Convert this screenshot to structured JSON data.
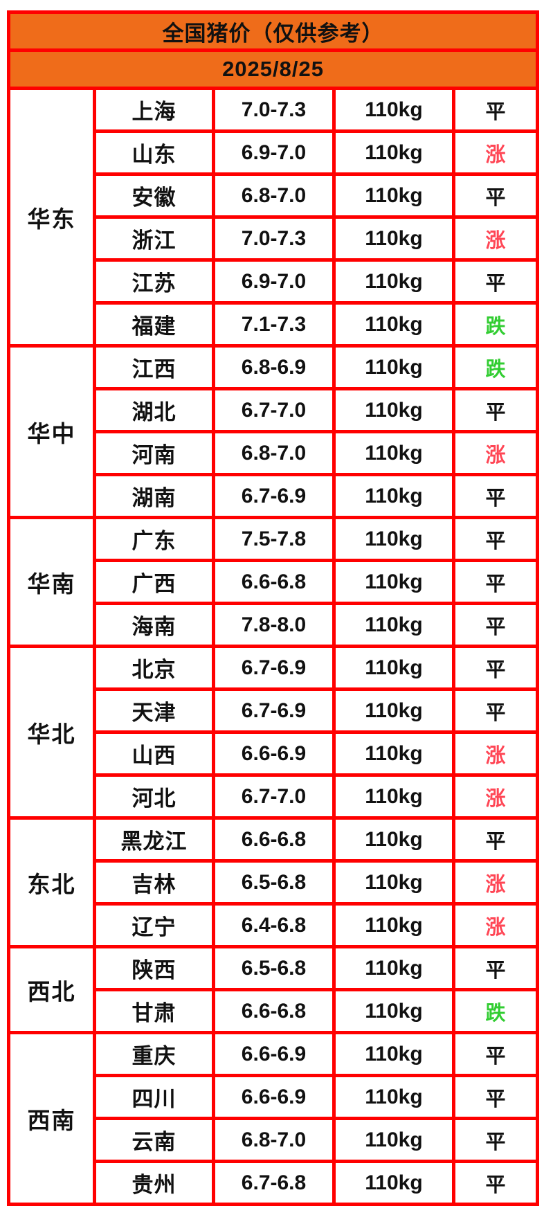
{
  "title": "全国猪价（仅供参考）",
  "date": "2025/8/25",
  "colors": {
    "header_bg": "#EF6C1A",
    "border": "#FF0000",
    "text": "#111111"
  },
  "trend_colors": {
    "平": "#111111",
    "涨": "#FF4655",
    "跌": "#32CD32"
  },
  "regions": [
    {
      "name": "华东",
      "rows": [
        {
          "province": "上海",
          "price": "7.0-7.3",
          "weight": "110kg",
          "status": "平"
        },
        {
          "province": "山东",
          "price": "6.9-7.0",
          "weight": "110kg",
          "status": "涨"
        },
        {
          "province": "安徽",
          "price": "6.8-7.0",
          "weight": "110kg",
          "status": "平"
        },
        {
          "province": "浙江",
          "price": "7.0-7.3",
          "weight": "110kg",
          "status": "涨"
        },
        {
          "province": "江苏",
          "price": "6.9-7.0",
          "weight": "110kg",
          "status": "平"
        },
        {
          "province": "福建",
          "price": "7.1-7.3",
          "weight": "110kg",
          "status": "跌"
        }
      ]
    },
    {
      "name": "华中",
      "rows": [
        {
          "province": "江西",
          "price": "6.8-6.9",
          "weight": "110kg",
          "status": "跌"
        },
        {
          "province": "湖北",
          "price": "6.7-7.0",
          "weight": "110kg",
          "status": "平"
        },
        {
          "province": "河南",
          "price": "6.8-7.0",
          "weight": "110kg",
          "status": "涨"
        },
        {
          "province": "湖南",
          "price": "6.7-6.9",
          "weight": "110kg",
          "status": "平"
        }
      ]
    },
    {
      "name": "华南",
      "rows": [
        {
          "province": "广东",
          "price": "7.5-7.8",
          "weight": "110kg",
          "status": "平"
        },
        {
          "province": "广西",
          "price": "6.6-6.8",
          "weight": "110kg",
          "status": "平"
        },
        {
          "province": "海南",
          "price": "7.8-8.0",
          "weight": "110kg",
          "status": "平"
        }
      ]
    },
    {
      "name": "华北",
      "rows": [
        {
          "province": "北京",
          "price": "6.7-6.9",
          "weight": "110kg",
          "status": "平"
        },
        {
          "province": "天津",
          "price": "6.7-6.9",
          "weight": "110kg",
          "status": "平"
        },
        {
          "province": "山西",
          "price": "6.6-6.9",
          "weight": "110kg",
          "status": "涨"
        },
        {
          "province": "河北",
          "price": "6.7-7.0",
          "weight": "110kg",
          "status": "涨"
        }
      ]
    },
    {
      "name": "东北",
      "rows": [
        {
          "province": "黑龙江",
          "price": "6.6-6.8",
          "weight": "110kg",
          "status": "平"
        },
        {
          "province": "吉林",
          "price": "6.5-6.8",
          "weight": "110kg",
          "status": "涨"
        },
        {
          "province": "辽宁",
          "price": "6.4-6.8",
          "weight": "110kg",
          "status": "涨"
        }
      ]
    },
    {
      "name": "西北",
      "rows": [
        {
          "province": "陕西",
          "price": "6.5-6.8",
          "weight": "110kg",
          "status": "平"
        },
        {
          "province": "甘肃",
          "price": "6.6-6.8",
          "weight": "110kg",
          "status": "跌"
        }
      ]
    },
    {
      "name": "西南",
      "rows": [
        {
          "province": "重庆",
          "price": "6.6-6.9",
          "weight": "110kg",
          "status": "平"
        },
        {
          "province": "四川",
          "price": "6.6-6.9",
          "weight": "110kg",
          "status": "平"
        },
        {
          "province": "云南",
          "price": "6.8-7.0",
          "weight": "110kg",
          "status": "平"
        },
        {
          "province": "贵州",
          "price": "6.7-6.8",
          "weight": "110kg",
          "status": "平"
        }
      ]
    }
  ],
  "chart_data": {
    "type": "table",
    "title": "全国猪价（仅供参考）",
    "date": "2025/8/25",
    "columns": [
      "region",
      "province",
      "price_range",
      "weight",
      "trend"
    ],
    "rows": [
      [
        "华东",
        "上海",
        "7.0-7.3",
        "110kg",
        "平"
      ],
      [
        "华东",
        "山东",
        "6.9-7.0",
        "110kg",
        "涨"
      ],
      [
        "华东",
        "安徽",
        "6.8-7.0",
        "110kg",
        "平"
      ],
      [
        "华东",
        "浙江",
        "7.0-7.3",
        "110kg",
        "涨"
      ],
      [
        "华东",
        "江苏",
        "6.9-7.0",
        "110kg",
        "平"
      ],
      [
        "华东",
        "福建",
        "7.1-7.3",
        "110kg",
        "跌"
      ],
      [
        "华中",
        "江西",
        "6.8-6.9",
        "110kg",
        "跌"
      ],
      [
        "华中",
        "湖北",
        "6.7-7.0",
        "110kg",
        "平"
      ],
      [
        "华中",
        "河南",
        "6.8-7.0",
        "110kg",
        "涨"
      ],
      [
        "华中",
        "湖南",
        "6.7-6.9",
        "110kg",
        "平"
      ],
      [
        "华南",
        "广东",
        "7.5-7.8",
        "110kg",
        "平"
      ],
      [
        "华南",
        "广西",
        "6.6-6.8",
        "110kg",
        "平"
      ],
      [
        "华南",
        "海南",
        "7.8-8.0",
        "110kg",
        "平"
      ],
      [
        "华北",
        "北京",
        "6.7-6.9",
        "110kg",
        "平"
      ],
      [
        "华北",
        "天津",
        "6.7-6.9",
        "110kg",
        "平"
      ],
      [
        "华北",
        "山西",
        "6.6-6.9",
        "110kg",
        "涨"
      ],
      [
        "华北",
        "河北",
        "6.7-7.0",
        "110kg",
        "涨"
      ],
      [
        "东北",
        "黑龙江",
        "6.6-6.8",
        "110kg",
        "平"
      ],
      [
        "东北",
        "吉林",
        "6.5-6.8",
        "110kg",
        "涨"
      ],
      [
        "东北",
        "辽宁",
        "6.4-6.8",
        "110kg",
        "涨"
      ],
      [
        "西北",
        "陕西",
        "6.5-6.8",
        "110kg",
        "平"
      ],
      [
        "西北",
        "甘肃",
        "6.6-6.8",
        "110kg",
        "跌"
      ],
      [
        "西南",
        "重庆",
        "6.6-6.9",
        "110kg",
        "平"
      ],
      [
        "西南",
        "四川",
        "6.6-6.9",
        "110kg",
        "平"
      ],
      [
        "西南",
        "云南",
        "6.8-7.0",
        "110kg",
        "平"
      ],
      [
        "西南",
        "贵州",
        "6.7-6.8",
        "110kg",
        "平"
      ]
    ]
  }
}
